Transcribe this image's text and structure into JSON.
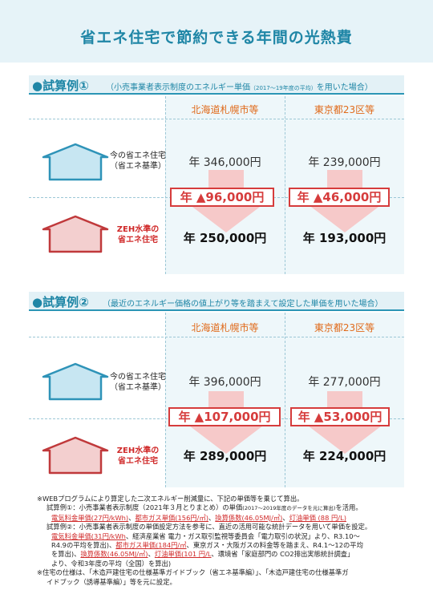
{
  "page": {
    "title": "省エネ住宅で節約できる年間の光熱費"
  },
  "colors": {
    "accent": "#1f86a6",
    "saving_red": "#d63c3c",
    "column_header": "#e06a1a",
    "base_house": "#2e93b8",
    "zeh_house": "#c0393b"
  },
  "example1": {
    "label": "●試算例①",
    "note_pre": "（小売事業者表示制度のエネルギー単価",
    "note_small": "（2017〜19年度の平均）",
    "note_post": "を用いた場合）",
    "columns": [
      "北海道札幌市等",
      "東京都23区等"
    ],
    "base_label_1": "今の省エネ住宅",
    "base_label_2": "（省エネ基準）",
    "zeh_label_1": "ZEH水準の",
    "zeh_label_2": "省エネ住宅",
    "base_costs": [
      "年 346,000円",
      "年 239,000円"
    ],
    "savings": [
      "年 ▲96,000円",
      "年 ▲46,000円"
    ],
    "zeh_costs": [
      "年 250,000円",
      "年 193,000円"
    ]
  },
  "example2": {
    "label": "●試算例②",
    "note": "（最近のエネルギー価格の値上がり等を踏まえて設定した単価を用いた場合）",
    "columns": [
      "北海道札幌市等",
      "東京都23区等"
    ],
    "base_label_1": "今の省エネ住宅",
    "base_label_2": "（省エネ基準）",
    "zeh_label_1": "ZEH水準の",
    "zeh_label_2": "省エネ住宅",
    "base_costs": [
      "年 396,000円",
      "年 277,000円"
    ],
    "savings": [
      "年 ▲107,000円",
      "年 ▲53,000円"
    ],
    "zeh_costs": [
      "年 289,000円",
      "年 224,000円"
    ]
  },
  "footnotes": {
    "n1": "※WEBプログラムにより算定した二次エネルギー削減量に、下記の単価等を乗じて算出。",
    "ex1_pre": "試算例①：小売事業者表示制度（2021年３月とりまとめ）の単価",
    "ex1_small": "(2017〜2019年度のデータを元に算出)",
    "ex1_post": "を活用。",
    "ex1_u1": "電気料金単価(27円/kWh)",
    "ex1_u2": "都市ガス単価(156円/㎥)",
    "ex1_u3": "換算係数(46.05MJ/㎥)",
    "ex1_u4": "灯油単価 (88 円/L)",
    "sep": "、",
    "ex2_line1": "試算例②：小売事業者表示制度の単価設定方法を参考に、直近の活用可能な統計データを用いて単価を設定。",
    "ex2_u1": "電気料金単価(31円/kWh",
    "ex2_l2_mid": "、経済産業省 電力・ガス取引監視等委員会「電力取引の状況」より、R3.10〜",
    "ex2_l3_pre": "R4.9の平均を算出)、",
    "ex2_u2": "都市ガス単価(184円/㎥",
    "ex2_l3_post": "、東京ガス・大阪ガスの料金等を踏まえ、R4.1〜12の平均",
    "ex2_l4_pre": "を算出)、",
    "ex2_u3": "換算係数(46.05MJ/㎥)",
    "ex2_u4": "灯油単価(101 円/L",
    "ex2_l4_post": "、環境省「家庭部門の CO2排出実態統計調査」",
    "ex2_l5": "より、令和3年度の平均（全国）を算出)",
    "n2_l1": "※住宅の仕様は、「木造戸建住宅の仕様基準ガイドブック（省エネ基準編）」、「木造戸建住宅の仕様基準ガ",
    "n2_l2": "イドブック（誘導基準編）」等を元に設定。"
  }
}
